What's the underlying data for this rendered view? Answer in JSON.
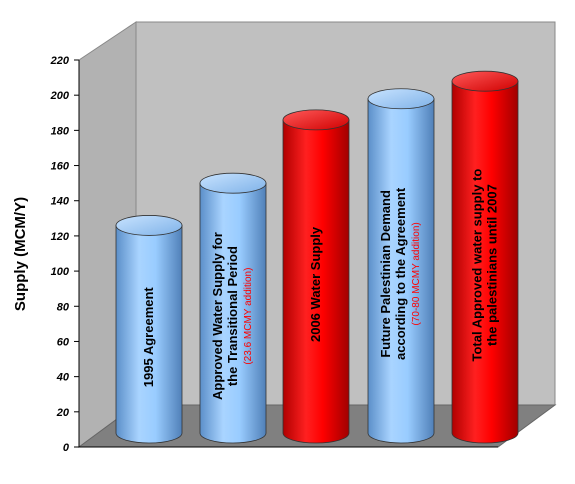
{
  "chart_data": {
    "type": "bar",
    "style": "3d-cylinder",
    "ylabel": "Supply (MCM/Y)",
    "ylim": [
      0,
      220
    ],
    "yticks": [
      0,
      20,
      40,
      60,
      80,
      100,
      120,
      140,
      160,
      180,
      200,
      220
    ],
    "grid": false,
    "legend": "none",
    "categories": [
      {
        "lines": [
          "1995 Agreement"
        ],
        "note": ""
      },
      {
        "lines": [
          "Approved Water Supply for",
          "the Transitional Period"
        ],
        "note": "(23.6 MCMY addition)"
      },
      {
        "lines": [
          "2006 Water Supply"
        ],
        "note": ""
      },
      {
        "lines": [
          "Future Palestinian Demand",
          "according to the Agreement"
        ],
        "note": "(70-80 MCMY addition)"
      },
      {
        "lines": [
          "Total Approved water supply to",
          "the palestinians until 2007"
        ],
        "note": ""
      }
    ],
    "values": [
      118,
      142,
      178,
      190,
      200
    ],
    "colors": [
      "#99ccff",
      "#99ccff",
      "#ff0000",
      "#99ccff",
      "#ff0000"
    ],
    "note_color": "#ff0000",
    "wall_color": "#c0c0c0",
    "floor_color": "#808080"
  }
}
